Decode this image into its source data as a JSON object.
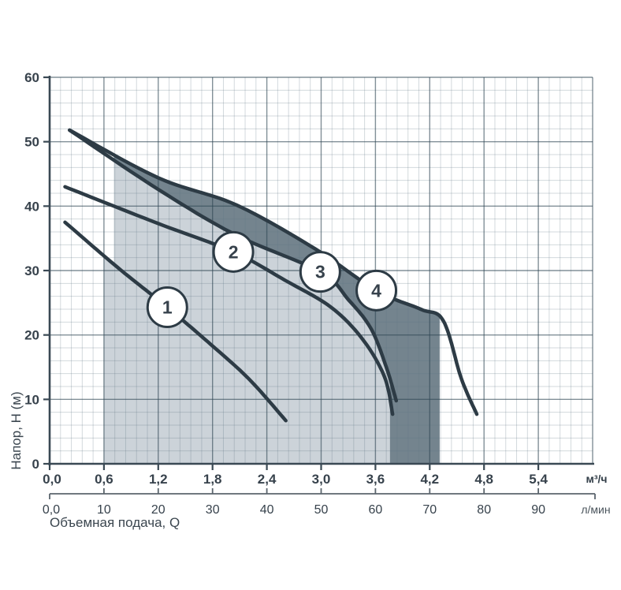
{
  "chart_data": {
    "type": "line",
    "description": "Pump performance curves H(Q) with 4 numbered curves and shaded operating regions",
    "y_axis": {
      "title": "Напор, Н (м)",
      "tick_labels": [
        "0",
        "10",
        "20",
        "30",
        "40",
        "50",
        "60"
      ],
      "tick_values": [
        0,
        10,
        20,
        30,
        40,
        50,
        60
      ],
      "range": [
        0,
        60
      ],
      "minor_step": 2
    },
    "x_axis_primary": {
      "unit": "м³/ч",
      "tick_labels": [
        "0,0",
        "0,6",
        "1,2",
        "1,8",
        "2,4",
        "3,0",
        "3,6",
        "4,2",
        "4,8",
        "5,4"
      ],
      "tick_values": [
        0,
        0.6,
        1.2,
        1.8,
        2.4,
        3.0,
        3.6,
        4.2,
        4.8,
        5.4
      ],
      "range": [
        0,
        6.0
      ],
      "minor_step": 0.12
    },
    "x_axis_secondary": {
      "unit": "л/мин",
      "tick_labels": [
        "0,0",
        "10",
        "20",
        "30",
        "40",
        "50",
        "60",
        "70",
        "80",
        "90"
      ],
      "tick_values_m3h": [
        0,
        0.6,
        1.2,
        1.8,
        2.4,
        3.0,
        3.6,
        4.2,
        4.8,
        5.4
      ]
    },
    "x_title": "Объемная подача, Q",
    "grid": true,
    "series": [
      {
        "label": "1",
        "points": [
          [
            0.17,
            37.5
          ],
          [
            0.75,
            30.5
          ],
          [
            1.3,
            24.3
          ],
          [
            1.75,
            18.9
          ],
          [
            2.2,
            13.2
          ],
          [
            2.61,
            6.7
          ]
        ],
        "marker_at": [
          1.3,
          24.3
        ]
      },
      {
        "label": "2",
        "points": [
          [
            0.17,
            43.0
          ],
          [
            1.2,
            37.3
          ],
          [
            2.03,
            32.9
          ],
          [
            2.6,
            28.5
          ],
          [
            3.11,
            24.3
          ],
          [
            3.46,
            19.3
          ],
          [
            3.7,
            13.5
          ],
          [
            3.79,
            7.7
          ]
        ],
        "marker_at": [
          2.03,
          32.9
        ]
      },
      {
        "label": "3",
        "points": [
          [
            0.22,
            51.8
          ],
          [
            1.2,
            42.6
          ],
          [
            2.06,
            35.5
          ],
          [
            2.99,
            29.8
          ],
          [
            3.3,
            25.5
          ],
          [
            3.55,
            21.0
          ],
          [
            3.72,
            15.0
          ],
          [
            3.83,
            9.8
          ]
        ],
        "marker_at": [
          2.99,
          29.8
        ]
      },
      {
        "label": "4",
        "points": [
          [
            0.22,
            51.8
          ],
          [
            1.2,
            44.4
          ],
          [
            2.06,
            40.2
          ],
          [
            2.93,
            33.4
          ],
          [
            3.61,
            26.9
          ],
          [
            4.1,
            24.0
          ],
          [
            4.35,
            22.2
          ],
          [
            4.55,
            13.2
          ],
          [
            4.72,
            7.7
          ]
        ],
        "marker_at": [
          3.61,
          26.9
        ]
      }
    ],
    "regions": [
      {
        "name": "light-operating-region",
        "color": "#ccd3d9",
        "left_q": 0.6,
        "lower_curve_until_q": 0.71,
        "upper_curve": "3",
        "right_q": 3.76
      },
      {
        "name": "dark-operating-region",
        "color": "#74848e",
        "left_q": 0.71,
        "upper_curve": "4",
        "lower_curve": "3",
        "lower_curve_end_q": 3.76,
        "right_q": 4.31
      }
    ],
    "colors": {
      "curve": "#2d3b45",
      "region_light": "#ccd3d9",
      "region_dark": "#74848e",
      "grid_minor": "rgba(96,118,132,0.28)",
      "grid_major": "rgba(47,70,84,0.60)",
      "axis": "#3a4954",
      "secondary_axis": "#5b656d",
      "text_dark": "#323e48",
      "text_secondary": "#4c565e",
      "marker_fill": "#ffffff"
    },
    "marker_radius_px": 25
  }
}
